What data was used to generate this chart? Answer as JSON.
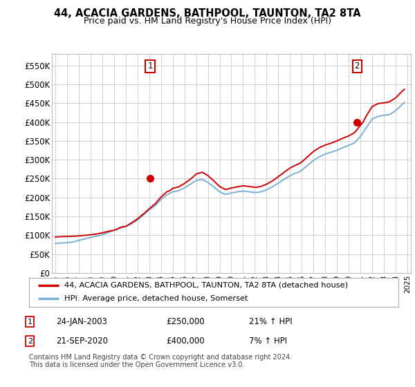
{
  "title": "44, ACACIA GARDENS, BATHPOOL, TAUNTON, TA2 8TA",
  "subtitle": "Price paid vs. HM Land Registry's House Price Index (HPI)",
  "legend_line1": "44, ACACIA GARDENS, BATHPOOL, TAUNTON, TA2 8TA (detached house)",
  "legend_line2": "HPI: Average price, detached house, Somerset",
  "annotation1_label": "1",
  "annotation1_date": "24-JAN-2003",
  "annotation1_price": "£250,000",
  "annotation1_hpi": "21% ↑ HPI",
  "annotation2_label": "2",
  "annotation2_date": "21-SEP-2020",
  "annotation2_price": "£400,000",
  "annotation2_hpi": "7% ↑ HPI",
  "footnote1": "Contains HM Land Registry data © Crown copyright and database right 2024.",
  "footnote2": "This data is licensed under the Open Government Licence v3.0.",
  "property_color": "#cc0000",
  "hpi_color": "#7ab0d4",
  "background_color": "#ffffff",
  "plot_bg_color": "#ffffff",
  "grid_color": "#d0d0d0",
  "ylim": [
    0,
    580000
  ],
  "yticks": [
    0,
    50000,
    100000,
    150000,
    200000,
    250000,
    300000,
    350000,
    400000,
    450000,
    500000,
    550000
  ],
  "ytick_labels": [
    "£0",
    "£50K",
    "£100K",
    "£150K",
    "£200K",
    "£250K",
    "£300K",
    "£350K",
    "£400K",
    "£450K",
    "£500K",
    "£550K"
  ],
  "sale1_year": 2003.07,
  "sale1_value": 250000,
  "sale2_year": 2020.72,
  "sale2_value": 400000,
  "hpi_years": [
    1995,
    1995.25,
    1995.5,
    1995.75,
    1996,
    1996.25,
    1996.5,
    1996.75,
    1997,
    1997.25,
    1997.5,
    1997.75,
    1998,
    1998.25,
    1998.5,
    1998.75,
    1999,
    1999.25,
    1999.5,
    1999.75,
    2000,
    2000.25,
    2000.5,
    2000.75,
    2001,
    2001.25,
    2001.5,
    2001.75,
    2002,
    2002.25,
    2002.5,
    2002.75,
    2003,
    2003.25,
    2003.5,
    2003.75,
    2004,
    2004.25,
    2004.5,
    2004.75,
    2005,
    2005.25,
    2005.5,
    2005.75,
    2006,
    2006.25,
    2006.5,
    2006.75,
    2007,
    2007.25,
    2007.5,
    2007.75,
    2008,
    2008.25,
    2008.5,
    2008.75,
    2009,
    2009.25,
    2009.5,
    2009.75,
    2010,
    2010.25,
    2010.5,
    2010.75,
    2011,
    2011.25,
    2011.5,
    2011.75,
    2012,
    2012.25,
    2012.5,
    2012.75,
    2013,
    2013.25,
    2013.5,
    2013.75,
    2014,
    2014.25,
    2014.5,
    2014.75,
    2015,
    2015.25,
    2015.5,
    2015.75,
    2016,
    2016.25,
    2016.5,
    2016.75,
    2017,
    2017.25,
    2017.5,
    2017.75,
    2018,
    2018.25,
    2018.5,
    2018.75,
    2019,
    2019.25,
    2019.5,
    2019.75,
    2020,
    2020.25,
    2020.5,
    2020.75,
    2021,
    2021.25,
    2021.5,
    2021.75,
    2022,
    2022.25,
    2022.5,
    2022.75,
    2023,
    2023.25,
    2023.5,
    2023.75,
    2024,
    2024.25,
    2024.5,
    2024.75
  ],
  "hpi_values": [
    78000,
    78500,
    79000,
    79500,
    80000,
    81000,
    82000,
    84000,
    86000,
    88000,
    90000,
    92000,
    94000,
    95500,
    97000,
    99000,
    101000,
    104000,
    107000,
    110000,
    113000,
    115500,
    118000,
    120500,
    123000,
    126500,
    130000,
    135000,
    140000,
    146500,
    153000,
    160000,
    167000,
    172500,
    178000,
    186500,
    195000,
    201000,
    207000,
    211000,
    215000,
    216500,
    218000,
    221500,
    225000,
    230000,
    235000,
    240000,
    245000,
    246500,
    248000,
    244000,
    240000,
    234000,
    228000,
    221500,
    215000,
    211500,
    208000,
    210000,
    212000,
    213000,
    215000,
    216000,
    217000,
    216000,
    215000,
    214000,
    213000,
    213500,
    215000,
    217500,
    220000,
    224000,
    228000,
    233000,
    238000,
    243000,
    248000,
    253000,
    258000,
    261500,
    265000,
    267000,
    272000,
    278500,
    285000,
    291500,
    298000,
    303000,
    308000,
    311500,
    315000,
    317500,
    320000,
    322500,
    325000,
    328500,
    332000,
    335000,
    338000,
    341500,
    345000,
    353500,
    362000,
    373000,
    385000,
    396500,
    408000,
    411500,
    415000,
    416500,
    418000,
    419000,
    420000,
    425000,
    430000,
    437500,
    445000,
    452000
  ],
  "prop_years": [
    1995,
    1995.25,
    1995.5,
    1995.75,
    1996,
    1996.25,
    1996.5,
    1996.75,
    1997,
    1997.25,
    1997.5,
    1997.75,
    1998,
    1998.25,
    1998.5,
    1998.75,
    1999,
    1999.25,
    1999.5,
    1999.75,
    2000,
    2000.25,
    2000.5,
    2000.75,
    2001,
    2001.25,
    2001.5,
    2001.75,
    2002,
    2002.25,
    2002.5,
    2002.75,
    2003,
    2003.25,
    2003.5,
    2003.75,
    2004,
    2004.25,
    2004.5,
    2004.75,
    2005,
    2005.25,
    2005.5,
    2005.75,
    2006,
    2006.25,
    2006.5,
    2006.75,
    2007,
    2007.25,
    2007.5,
    2007.75,
    2008,
    2008.25,
    2008.5,
    2008.75,
    2009,
    2009.25,
    2009.5,
    2009.75,
    2010,
    2010.25,
    2010.5,
    2010.75,
    2011,
    2011.25,
    2011.5,
    2011.75,
    2012,
    2012.25,
    2012.5,
    2012.75,
    2013,
    2013.25,
    2013.5,
    2013.75,
    2014,
    2014.25,
    2014.5,
    2014.75,
    2015,
    2015.25,
    2015.5,
    2015.75,
    2016,
    2016.25,
    2016.5,
    2016.75,
    2017,
    2017.25,
    2017.5,
    2017.75,
    2018,
    2018.25,
    2018.5,
    2018.75,
    2019,
    2019.25,
    2019.5,
    2019.75,
    2020,
    2020.25,
    2020.5,
    2020.75,
    2021,
    2021.25,
    2021.5,
    2021.75,
    2022,
    2022.25,
    2022.5,
    2022.75,
    2023,
    2023.25,
    2023.5,
    2023.75,
    2024,
    2024.25,
    2024.5,
    2024.75
  ],
  "prop_values": [
    95000,
    95500,
    96000,
    96200,
    96500,
    96800,
    97000,
    97500,
    98000,
    98800,
    99500,
    100200,
    101000,
    102000,
    103000,
    104500,
    106000,
    108000,
    110000,
    111500,
    113000,
    116000,
    120000,
    122500,
    123000,
    128000,
    133000,
    138000,
    143000,
    150000,
    156000,
    163000,
    170000,
    176500,
    183000,
    192000,
    201000,
    208000,
    215000,
    218000,
    224000,
    226000,
    228000,
    232500,
    237000,
    242500,
    248000,
    255000,
    262000,
    264500,
    267000,
    262500,
    258000,
    251000,
    244000,
    236500,
    229000,
    225000,
    221000,
    223000,
    225000,
    226500,
    228000,
    229500,
    231000,
    230000,
    229000,
    228000,
    227000,
    227500,
    229000,
    232000,
    235000,
    239500,
    244000,
    249500,
    255000,
    261000,
    267000,
    272500,
    278000,
    282000,
    286000,
    289000,
    294000,
    301000,
    308000,
    315000,
    322000,
    327000,
    332000,
    335500,
    339000,
    341500,
    344000,
    347000,
    350000,
    353500,
    357000,
    360000,
    363000,
    367500,
    372000,
    381500,
    391000,
    401000,
    416000,
    428500,
    441000,
    445000,
    449000,
    450000,
    451000,
    452000,
    454000,
    459000,
    464000,
    472000,
    480000,
    487000
  ]
}
